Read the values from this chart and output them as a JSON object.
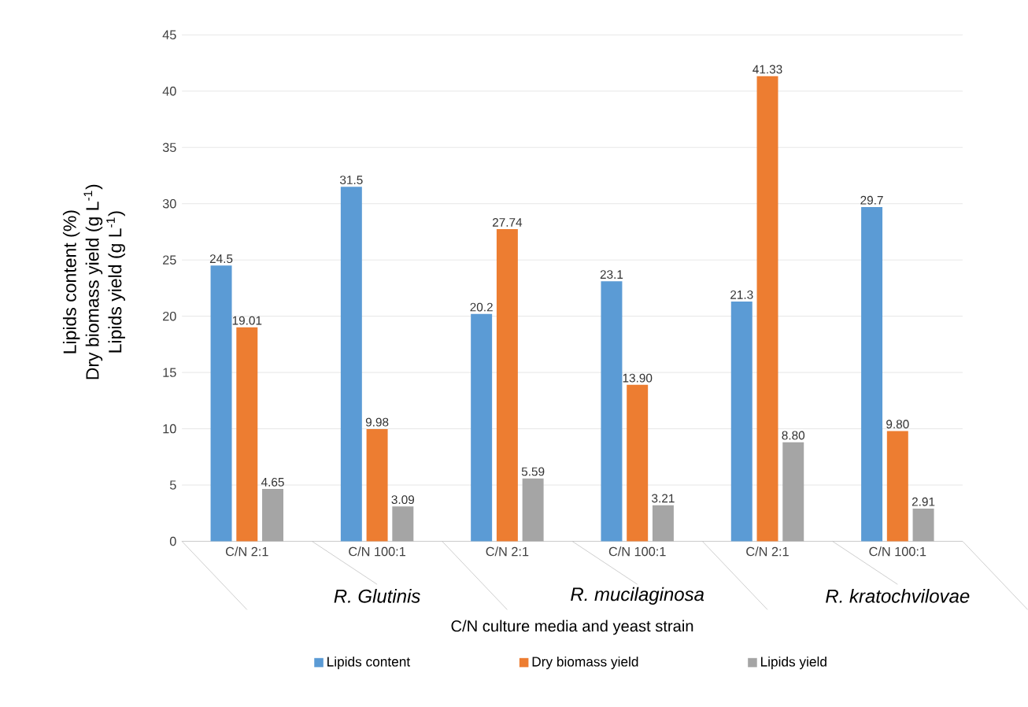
{
  "chart_data": {
    "type": "bar",
    "xlabel": "C/N culture media and yeast strain",
    "ylabel": "Lipids content (%)",
    "categories": [
      "C/N 2:1",
      "C/N 100:1",
      "C/N 2:1",
      "C/N 100:1",
      "C/N 2:1",
      "C/N 100:1"
    ],
    "series": [
      {
        "name": "Lipids content",
        "color": "#5b9bd5",
        "values": [
          24.5,
          31.5,
          20.2,
          23.1,
          21.3,
          29.7
        ],
        "value_labels": [
          "24.5",
          "31.5",
          "20.2",
          "23.1",
          "21.3",
          "29.7"
        ]
      },
      {
        "name": "Dry biomass yield",
        "color": "#ed7d31",
        "values": [
          19.01,
          9.98,
          27.74,
          13.9,
          41.33,
          9.8
        ],
        "value_labels": [
          "19.01",
          "9.98",
          "27.74",
          "13.90",
          "41.33",
          "9.80"
        ]
      },
      {
        "name": "Lipids yield",
        "color": "#a5a5a5",
        "values": [
          4.65,
          3.09,
          5.59,
          3.21,
          8.8,
          2.91
        ],
        "value_labels": [
          "4.65",
          "3.09",
          "5.59",
          "3.21",
          "8.80",
          "2.91"
        ]
      }
    ],
    "annotations": [
      "R. Glutinis",
      "R. mucilaginosa",
      "R. kratochvilovae",
      "Dry biomass yield (g L$^{-1}$)",
      "Lipids yield (g L$^{-1}$)"
    ],
    "ylim": [
      0,
      45
    ],
    "yticks": [
      0,
      5,
      10,
      15,
      20,
      25,
      30,
      35,
      40,
      45
    ],
    "grid": "y",
    "legend": "bottom"
  }
}
